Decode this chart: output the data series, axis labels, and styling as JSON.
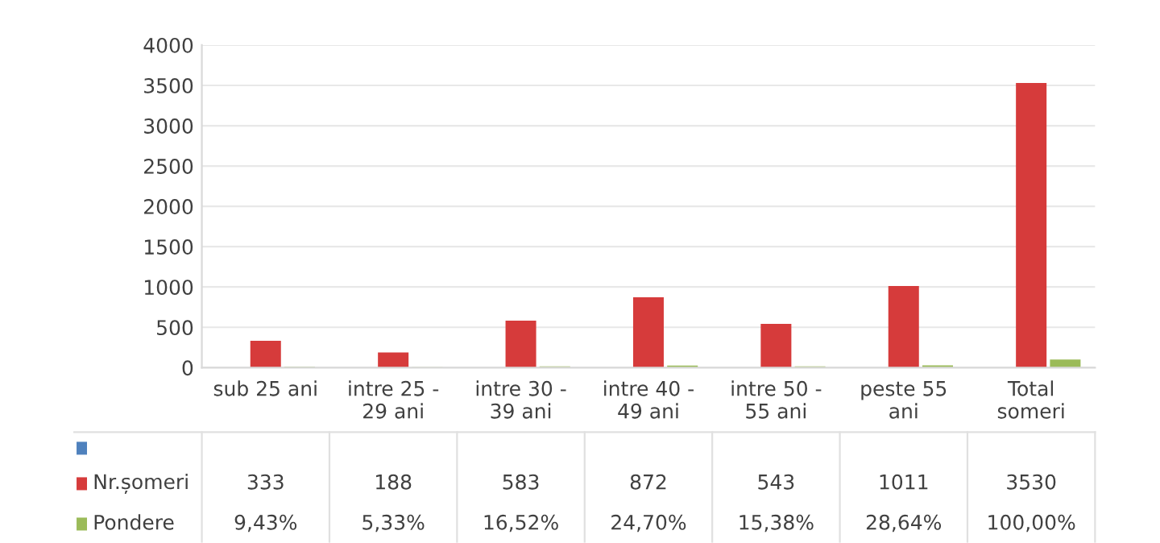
{
  "chart_data": {
    "type": "bar",
    "categories": [
      "sub 25 ani",
      "intre 25 -\n29 ani",
      "intre 30 -\n39 ani",
      "intre 40 -\n49 ani",
      "intre 50 -\n55 ani",
      "peste 55\nani",
      "Total\nsomeri"
    ],
    "series": [
      {
        "color": "#4f81bd",
        "values": [
          null,
          null,
          null,
          null,
          null,
          null,
          null
        ]
      },
      {
        "name": "Nr.șomeri",
        "color": "#d63b3b",
        "values": [
          333,
          188,
          583,
          872,
          543,
          1011,
          3530
        ],
        "value_labels": [
          "333",
          "188",
          "583",
          "872",
          "543",
          "1011",
          "3530"
        ]
      },
      {
        "name": "Pondere",
        "color": "#9bbb59",
        "values": [
          9.43,
          5.33,
          16.52,
          24.7,
          15.38,
          28.64,
          100
        ],
        "value_labels": [
          "9,43%",
          "5,33%",
          "16,52%",
          "24,70%",
          "15,38%",
          "28,64%",
          "100,00%"
        ]
      }
    ],
    "ylim": [
      0,
      4000
    ],
    "yticks": [
      0,
      500,
      1000,
      1500,
      2000,
      2500,
      3000,
      3500,
      4000
    ],
    "grid": "y",
    "legend": "bottom"
  }
}
